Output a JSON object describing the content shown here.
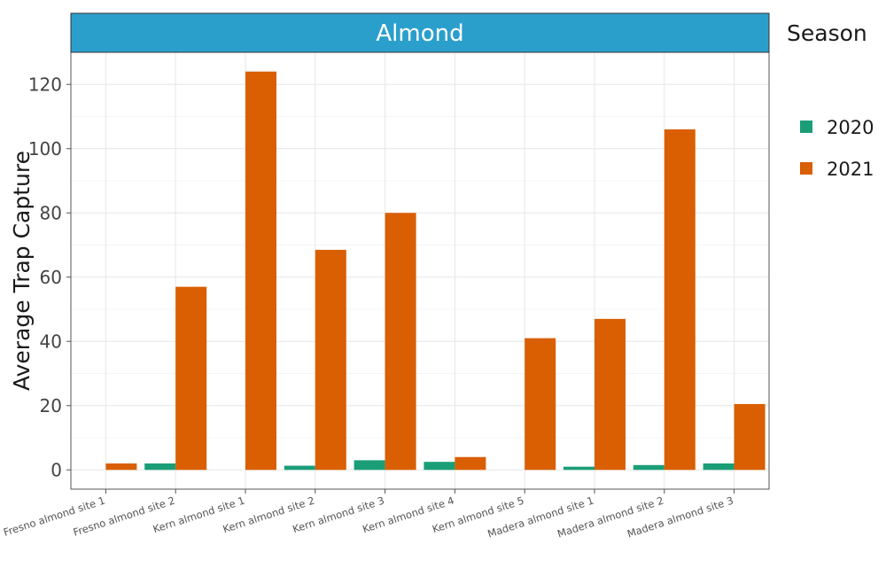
{
  "chart_data": {
    "type": "bar",
    "facet": "Almond",
    "categories": [
      "Fresno almond site 1",
      "Fresno almond site 2",
      "Kern almond site 1",
      "Kern almond site 2",
      "Kern almond site 3",
      "Kern almond site 4",
      "Kern almond site 5",
      "Madera almond site 1",
      "Madera almond site 2",
      "Madera almond site 3"
    ],
    "series": [
      {
        "name": "2020",
        "color": "#1b9e77",
        "values": [
          null,
          2.0,
          null,
          1.3,
          3.0,
          2.5,
          null,
          1.0,
          1.5,
          2.0
        ]
      },
      {
        "name": "2021",
        "color": "#d95f02",
        "values": [
          2.0,
          57.0,
          124.0,
          68.5,
          80.0,
          4.0,
          41.0,
          47.0,
          106.0,
          20.5
        ]
      }
    ],
    "ylabel": "Average Trap Capture",
    "xlabel": "",
    "ylim": [
      -6,
      130
    ],
    "yticks": [
      0,
      20,
      40,
      60,
      80,
      100,
      120
    ],
    "legend_title": "Season",
    "legend_position": "right",
    "grid": true,
    "strip_color": "#2b9fcc"
  }
}
